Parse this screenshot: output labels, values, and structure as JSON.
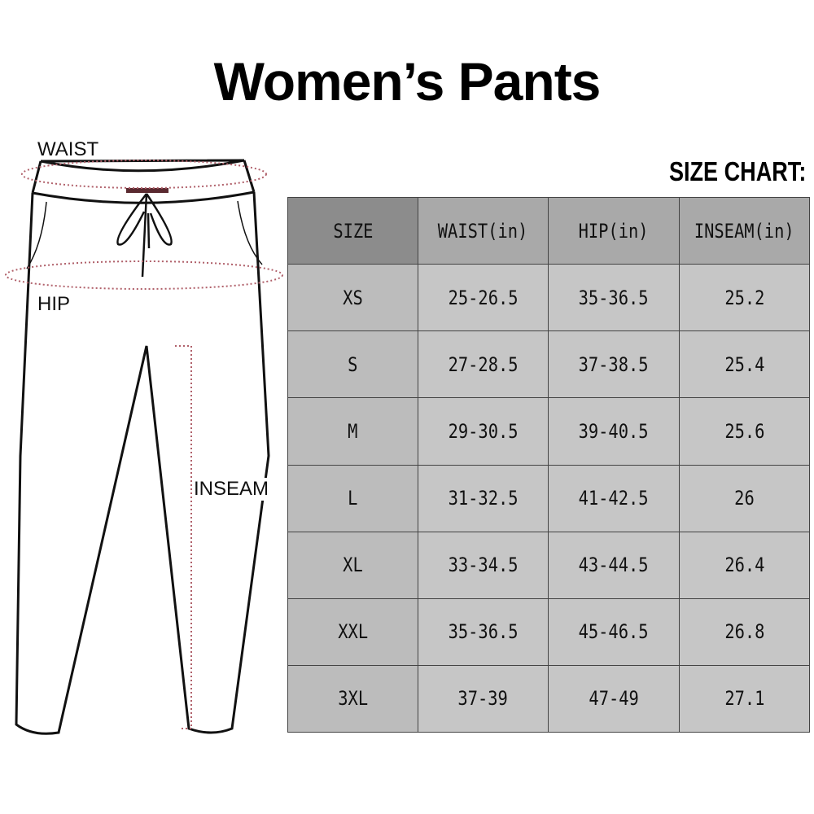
{
  "title": "Women’s Pants",
  "chart_label": "SIZE CHART:",
  "diagram_labels": {
    "waist": "WAIST",
    "hip": "HIP",
    "inseam": "INSEAM"
  },
  "table": {
    "headers": [
      "SIZE",
      "WAIST(in)",
      "HIP(in)",
      "INSEAM(in)"
    ],
    "rows": [
      [
        "XS",
        "25-26.5",
        "35-36.5",
        "25.2"
      ],
      [
        "S",
        "27-28.5",
        "37-38.5",
        "25.4"
      ],
      [
        "M",
        "29-30.5",
        "39-40.5",
        "25.6"
      ],
      [
        "L",
        "31-32.5",
        "41-42.5",
        "26"
      ],
      [
        "XL",
        "33-34.5",
        "43-44.5",
        "26.4"
      ],
      [
        "XXL",
        "35-36.5",
        "45-46.5",
        "26.8"
      ],
      [
        "3XL",
        "37-39",
        "47-49",
        "27.1"
      ]
    ]
  },
  "colors": {
    "measure_line": "#b0606a",
    "header_size": "#8c8c8c",
    "header": "#a9a9a9",
    "cell": "#c6c6c6"
  }
}
